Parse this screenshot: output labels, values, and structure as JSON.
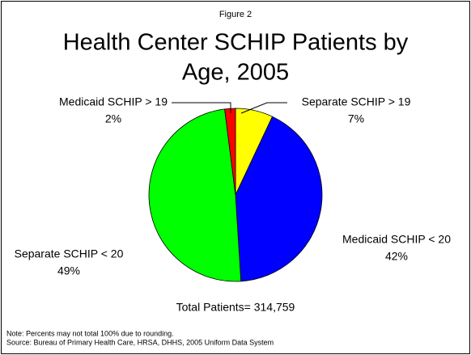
{
  "chart_data": {
    "type": "pie",
    "figure_label": "Figure 2",
    "title": [
      "Health Center SCHIP Patients by",
      "Age, 2005"
    ],
    "categories": [
      "Separate SCHIP > 19",
      "Medicaid SCHIP < 20",
      "Separate SCHIP < 20",
      "Medicaid SCHIP > 19"
    ],
    "values": [
      7,
      42,
      49,
      2
    ],
    "value_labels": [
      "7%",
      "42%",
      "49%",
      "2%"
    ],
    "colors": [
      "#ffff00",
      "#0000ff",
      "#00ff00",
      "#ff0000"
    ],
    "total_label": "Total Patients= 314,759",
    "notes": [
      "Note:  Percents may not total 100% due to rounding.",
      "Source:  Bureau of Primary Health Care, HRSA, DHHS, 2005 Uniform Data System"
    ]
  }
}
